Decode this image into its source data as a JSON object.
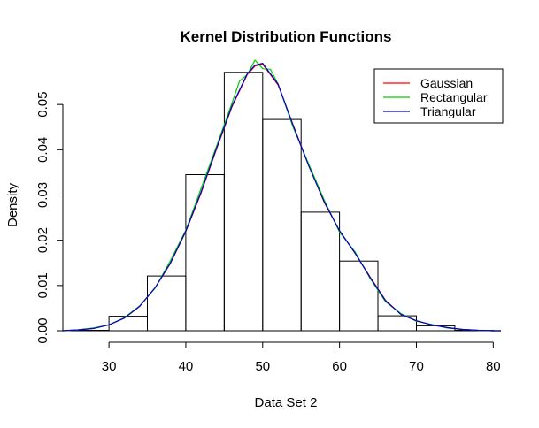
{
  "chart_data": {
    "type": "histogram",
    "title": "Kernel Distribution Functions",
    "xlabel": "Data Set 2",
    "ylabel": "Density",
    "xlim": [
      24,
      81
    ],
    "ylim": [
      0,
      0.06
    ],
    "x_ticks": [
      30,
      40,
      50,
      60,
      70,
      80
    ],
    "y_ticks": [
      0.0,
      0.01,
      0.02,
      0.03,
      0.04,
      0.05
    ],
    "y_tick_labels": [
      "0.00",
      "0.01",
      "0.02",
      "0.03",
      "0.04",
      "0.05"
    ],
    "bins": [
      {
        "start": 25,
        "end": 30,
        "density": 0.0001
      },
      {
        "start": 30,
        "end": 35,
        "density": 0.0032
      },
      {
        "start": 35,
        "end": 40,
        "density": 0.0121
      },
      {
        "start": 40,
        "end": 45,
        "density": 0.0345
      },
      {
        "start": 45,
        "end": 50,
        "density": 0.0571
      },
      {
        "start": 50,
        "end": 55,
        "density": 0.0467
      },
      {
        "start": 55,
        "end": 60,
        "density": 0.0262
      },
      {
        "start": 60,
        "end": 65,
        "density": 0.0154
      },
      {
        "start": 65,
        "end": 70,
        "density": 0.0033
      },
      {
        "start": 70,
        "end": 75,
        "density": 0.0011
      },
      {
        "start": 75,
        "end": 80,
        "density": 0.0001
      }
    ],
    "series": [
      {
        "name": "Gaussian",
        "color": "#ff0000",
        "x": [
          24,
          26,
          28,
          30,
          32,
          34,
          36,
          38,
          40,
          42,
          44,
          46,
          48,
          49,
          50,
          52,
          54,
          56,
          58,
          60,
          62,
          64,
          66,
          68,
          70,
          72,
          74,
          76,
          78,
          80,
          81
        ],
        "y": [
          0.0,
          0.0002,
          0.0005,
          0.0013,
          0.0028,
          0.0054,
          0.0095,
          0.0149,
          0.0219,
          0.0305,
          0.0402,
          0.0495,
          0.0566,
          0.0585,
          0.0589,
          0.0543,
          0.0453,
          0.0365,
          0.0284,
          0.0221,
          0.0172,
          0.0118,
          0.0067,
          0.0036,
          0.0022,
          0.0013,
          0.0007,
          0.0003,
          0.0001,
          0.0,
          0.0
        ]
      },
      {
        "name": "Rectangular",
        "color": "#00cc00",
        "x": [
          24,
          26,
          28,
          30,
          32,
          34,
          36,
          38,
          40,
          42,
          44,
          46,
          47,
          48,
          49,
          50,
          51,
          52,
          54,
          56,
          58,
          60,
          62,
          64,
          66,
          68,
          70,
          72,
          74,
          76,
          78,
          80,
          81
        ],
        "y": [
          0.0,
          0.0002,
          0.0006,
          0.0013,
          0.0029,
          0.0055,
          0.0094,
          0.0155,
          0.0222,
          0.0315,
          0.0408,
          0.0503,
          0.0552,
          0.0566,
          0.0598,
          0.0579,
          0.0578,
          0.0545,
          0.0448,
          0.0368,
          0.0289,
          0.0218,
          0.0175,
          0.0115,
          0.0064,
          0.0038,
          0.0021,
          0.0014,
          0.0006,
          0.0003,
          0.0001,
          0.0,
          0.0
        ]
      },
      {
        "name": "Triangular",
        "color": "#0000cc",
        "x": [
          24,
          26,
          28,
          30,
          32,
          34,
          36,
          38,
          40,
          42,
          44,
          46,
          48,
          49,
          50,
          52,
          54,
          56,
          58,
          60,
          62,
          64,
          66,
          68,
          70,
          72,
          74,
          76,
          78,
          80,
          81
        ],
        "y": [
          0.0,
          0.0002,
          0.0005,
          0.0013,
          0.0028,
          0.0054,
          0.0095,
          0.015,
          0.022,
          0.0307,
          0.0404,
          0.0497,
          0.0568,
          0.0587,
          0.0591,
          0.0545,
          0.0452,
          0.0364,
          0.0285,
          0.0221,
          0.0172,
          0.0117,
          0.0066,
          0.0036,
          0.0022,
          0.0013,
          0.0007,
          0.0003,
          0.0001,
          0.0,
          0.0
        ]
      }
    ],
    "legend": {
      "position": "top-right",
      "entries": [
        "Gaussian",
        "Rectangular",
        "Triangular"
      ]
    },
    "grid": false
  }
}
